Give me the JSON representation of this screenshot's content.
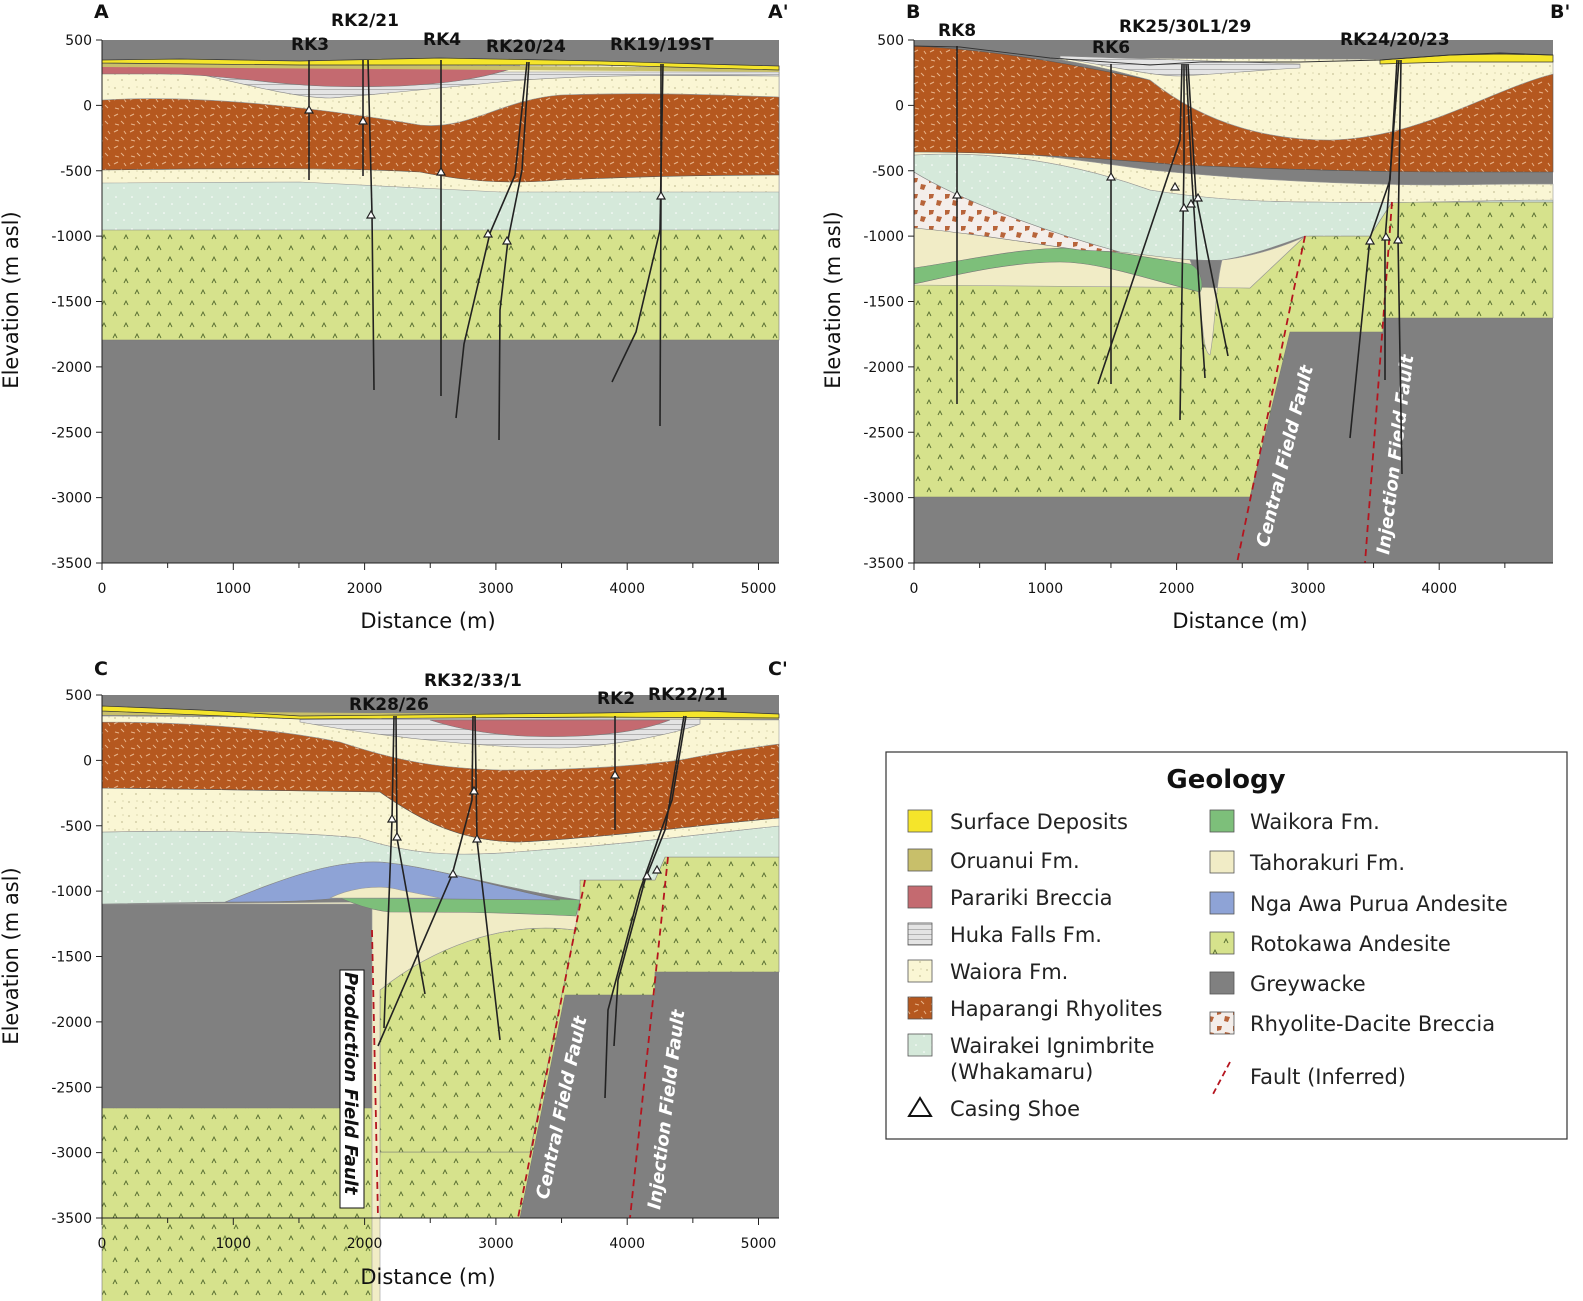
{
  "panels": [
    {
      "id": "A",
      "start_label": "A",
      "end_label": "A'",
      "wells": [
        "RK3",
        "RK2/21",
        "RK4",
        "RK20/24",
        "RK19/19ST"
      ]
    },
    {
      "id": "B",
      "start_label": "B",
      "end_label": "B'",
      "wells": [
        "RK8",
        "RK6",
        "RK25/30L1/29",
        "RK24/20/23"
      ],
      "faults": [
        "Central Field Fault",
        "Injection Field Fault"
      ]
    },
    {
      "id": "C",
      "start_label": "C",
      "end_label": "C'",
      "wells": [
        "RK28/26",
        "RK32/33/1",
        "RK2",
        "RK22/21"
      ],
      "faults": [
        "Production Field Fault",
        "Central Field Fault",
        "Injection Field Fault"
      ]
    }
  ],
  "axes": {
    "xlabel": "Distance (m)",
    "ylabel": "Elevation (m asl)",
    "yticks": [
      "500",
      "0",
      "-500",
      "-1000",
      "-1500",
      "-2000",
      "-2500",
      "-3000",
      "-3500"
    ],
    "xticks": [
      "0",
      "1000",
      "2000",
      "3000",
      "4000",
      "5000"
    ],
    "xticks_b": [
      "0",
      "1000",
      "2000",
      "3000",
      "4000"
    ],
    "ylim": [
      -3500,
      500
    ]
  },
  "legend": {
    "title": "Geology",
    "left": [
      {
        "label": "Surface Deposits",
        "color": "#f5e52a"
      },
      {
        "label": "Oruanui Fm.",
        "color": "#c8bf6a"
      },
      {
        "label": "Parariki Breccia",
        "color": "#c46a70"
      },
      {
        "label": "Huka Falls Fm.",
        "color": "#e4e4e4"
      },
      {
        "label": "Waiora Fm.",
        "color": "#faf6d4"
      },
      {
        "label": "Haparangi Rhyolites",
        "color": "#b5581f"
      },
      {
        "label": "Wairakei Ignimbrite",
        "label2": "(Whakamaru)",
        "color": "#d5e9da"
      }
    ],
    "right": [
      {
        "label": "Waikora Fm.",
        "color": "#7dbf7a"
      },
      {
        "label": "Tahorakuri Fm.",
        "color": "#f1ecc6"
      },
      {
        "label": "Nga Awa Purua Andesite",
        "color": "#8ea3d6"
      },
      {
        "label": "Rotokawa Andesite",
        "color": "#d6e28c"
      },
      {
        "label": "Greywacke",
        "color": "#808080"
      },
      {
        "label": "Rhyolite-Dacite Breccia",
        "color": "#f4eeea"
      }
    ],
    "casing_shoe": "Casing Shoe",
    "fault": "Fault (Inferred)"
  }
}
